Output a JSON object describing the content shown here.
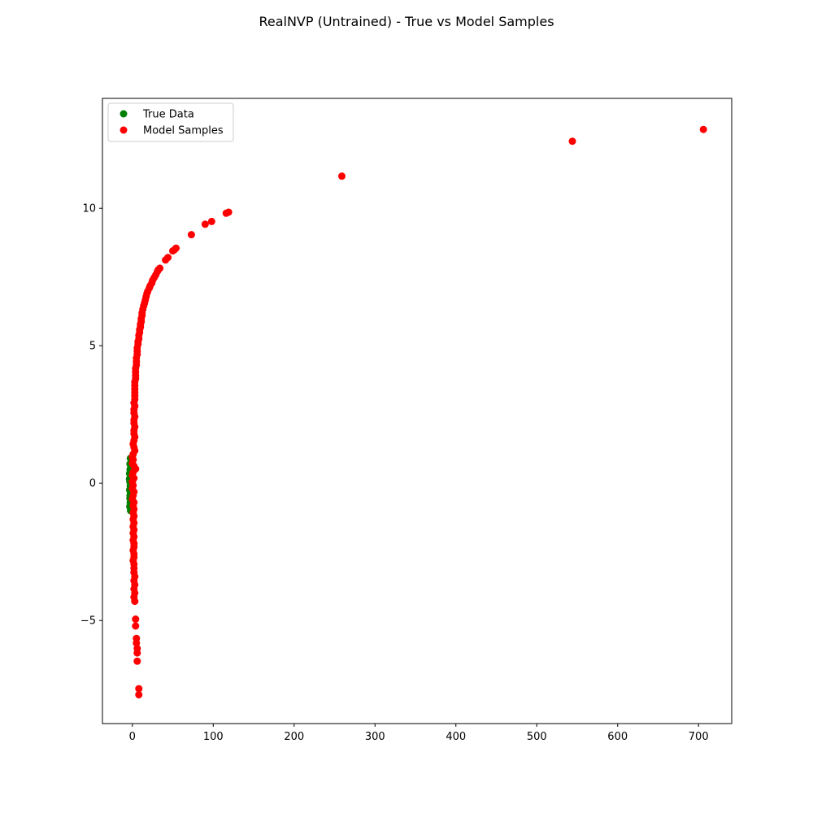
{
  "chart_data": {
    "type": "scatter",
    "title": "RealNVP (Untrained) - True vs Model Samples",
    "xlabel": "",
    "ylabel": "",
    "xlim": [
      -37,
      741
    ],
    "ylim": [
      -8.75,
      14.0
    ],
    "x_ticks": [
      0,
      100,
      200,
      300,
      400,
      500,
      600,
      700
    ],
    "y_ticks": [
      -5,
      0,
      5,
      10
    ],
    "grid": false,
    "legend_position": "top-left",
    "series": [
      {
        "name": "True Data",
        "color": "#008000",
        "points": [
          [
            -2.5,
            0.9
          ],
          [
            -3.0,
            0.7
          ],
          [
            -2.8,
            0.5
          ],
          [
            -3.5,
            0.35
          ],
          [
            -2.2,
            0.2
          ],
          [
            -3.2,
            0.05
          ],
          [
            -2.6,
            -0.1
          ],
          [
            -3.4,
            -0.25
          ],
          [
            -2.4,
            -0.4
          ],
          [
            -3.1,
            -0.55
          ],
          [
            -2.7,
            -0.7
          ],
          [
            -3.3,
            -0.85
          ],
          [
            -2.3,
            -1.0
          ],
          [
            -1.8,
            0.6
          ],
          [
            -1.5,
            -0.3
          ],
          [
            -1.2,
            0.1
          ],
          [
            -2.0,
            -0.8
          ],
          [
            -0.8,
            0.4
          ],
          [
            -3.6,
            0.15
          ],
          [
            -2.9,
            -0.45
          ]
        ]
      },
      {
        "name": "Model Samples",
        "color": "#ff0000",
        "points": [
          [
            706,
            12.87
          ],
          [
            544,
            12.44
          ],
          [
            259,
            11.17
          ],
          [
            119,
            9.86
          ],
          [
            116,
            9.82
          ],
          [
            98,
            9.52
          ],
          [
            90,
            9.42
          ],
          [
            73,
            9.04
          ],
          [
            54,
            8.55
          ],
          [
            52,
            8.49
          ],
          [
            50,
            8.45
          ],
          [
            44,
            8.21
          ],
          [
            41,
            8.12
          ],
          [
            34,
            7.82
          ],
          [
            32,
            7.76
          ],
          [
            31,
            7.7
          ],
          [
            29,
            7.58
          ],
          [
            27,
            7.48
          ],
          [
            25,
            7.38
          ],
          [
            24,
            7.28
          ],
          [
            22,
            7.18
          ],
          [
            21,
            7.1
          ],
          [
            19,
            6.98
          ],
          [
            18,
            6.9
          ],
          [
            17,
            6.78
          ],
          [
            16,
            6.66
          ],
          [
            15,
            6.55
          ],
          [
            14,
            6.45
          ],
          [
            13,
            6.33
          ],
          [
            12,
            6.2
          ],
          [
            12,
            6.1
          ],
          [
            11,
            5.98
          ],
          [
            11,
            5.88
          ],
          [
            10,
            5.78
          ],
          [
            10,
            5.68
          ],
          [
            9,
            5.58
          ],
          [
            9,
            5.48
          ],
          [
            8,
            5.38
          ],
          [
            8,
            5.25
          ],
          [
            7,
            5.15
          ],
          [
            7,
            5.05
          ],
          [
            6,
            4.92
          ],
          [
            6,
            4.8
          ],
          [
            6,
            4.68
          ],
          [
            5,
            4.55
          ],
          [
            5,
            4.42
          ],
          [
            5,
            4.3
          ],
          [
            4,
            4.18
          ],
          [
            4,
            4.05
          ],
          [
            4,
            3.92
          ],
          [
            4,
            3.8
          ],
          [
            3,
            3.68
          ],
          [
            3,
            3.55
          ],
          [
            3,
            3.42
          ],
          [
            3,
            3.3
          ],
          [
            3,
            3.18
          ],
          [
            3,
            3.05
          ],
          [
            2,
            2.92
          ],
          [
            3,
            2.8
          ],
          [
            2,
            2.68
          ],
          [
            2,
            2.55
          ],
          [
            3,
            2.42
          ],
          [
            2,
            2.3
          ],
          [
            2,
            2.18
          ],
          [
            3,
            2.05
          ],
          [
            2,
            1.92
          ],
          [
            2,
            1.8
          ],
          [
            3,
            1.68
          ],
          [
            2,
            1.55
          ],
          [
            1,
            1.42
          ],
          [
            2,
            1.3
          ],
          [
            3,
            1.18
          ],
          [
            1,
            1.05
          ],
          [
            0,
            0.95
          ],
          [
            1,
            0.85
          ],
          [
            0,
            0.72
          ],
          [
            2,
            0.62
          ],
          [
            4,
            0.52
          ],
          [
            1,
            0.4
          ],
          [
            0,
            0.28
          ],
          [
            2,
            0.18
          ],
          [
            0,
            0.05
          ],
          [
            1,
            -0.08
          ],
          [
            0,
            -0.2
          ],
          [
            2,
            -0.32
          ],
          [
            1,
            -0.45
          ],
          [
            0,
            -0.58
          ],
          [
            2,
            -0.7
          ],
          [
            1,
            -0.82
          ],
          [
            2,
            -0.95
          ],
          [
            1,
            -1.08
          ],
          [
            2,
            -1.2
          ],
          [
            1,
            -1.32
          ],
          [
            2,
            -1.45
          ],
          [
            1,
            -1.58
          ],
          [
            2,
            -1.7
          ],
          [
            1,
            -1.82
          ],
          [
            2,
            -1.95
          ],
          [
            1,
            -2.08
          ],
          [
            2,
            -2.2
          ],
          [
            2,
            -2.32
          ],
          [
            1,
            -2.45
          ],
          [
            2,
            -2.58
          ],
          [
            2,
            -2.7
          ],
          [
            1,
            -2.82
          ],
          [
            2,
            -2.95
          ],
          [
            2,
            -3.1
          ],
          [
            2,
            -3.25
          ],
          [
            3,
            -3.4
          ],
          [
            2,
            -3.55
          ],
          [
            3,
            -3.7
          ],
          [
            2,
            -3.85
          ],
          [
            3,
            -4.0
          ],
          [
            2,
            -4.15
          ],
          [
            3,
            -4.3
          ],
          [
            4,
            -4.95
          ],
          [
            4,
            -5.2
          ],
          [
            5,
            -5.65
          ],
          [
            5,
            -5.82
          ],
          [
            6,
            -6.02
          ],
          [
            6,
            -6.18
          ],
          [
            6,
            -6.48
          ],
          [
            8,
            -7.48
          ],
          [
            8,
            -7.7
          ]
        ]
      }
    ]
  }
}
